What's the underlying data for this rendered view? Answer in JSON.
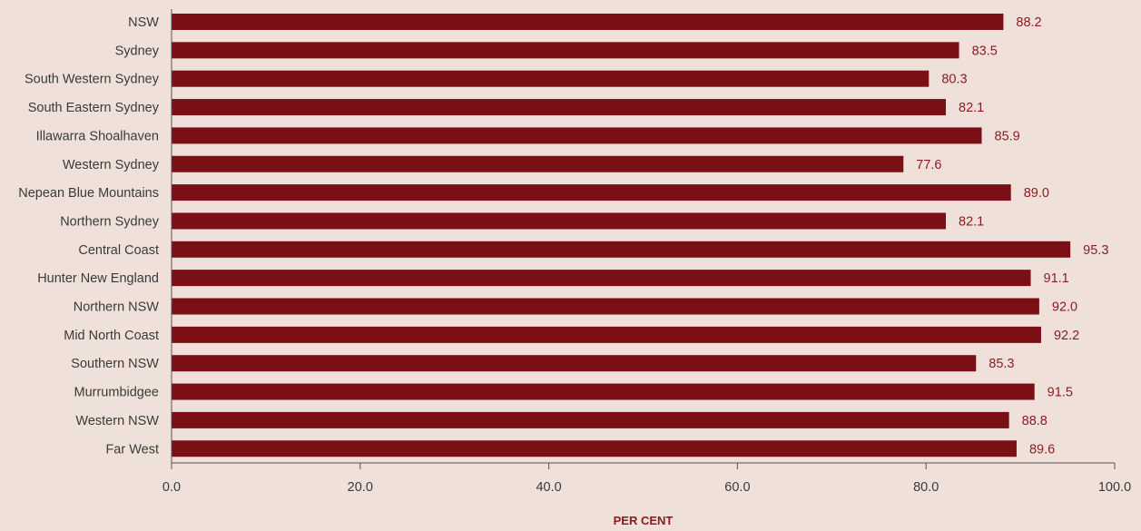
{
  "chart_data": {
    "type": "bar",
    "orientation": "horizontal",
    "categories": [
      "NSW",
      "Sydney",
      "South Western Sydney",
      "South Eastern Sydney",
      "Illawarra Shoalhaven",
      "Western Sydney",
      "Nepean Blue Mountains",
      "Northern Sydney",
      "Central Coast",
      "Hunter New England",
      "Northern NSW",
      "Mid North Coast",
      "Southern NSW",
      "Murrumbidgee",
      "Western NSW",
      "Far West"
    ],
    "values": [
      88.2,
      83.5,
      80.3,
      82.1,
      85.9,
      77.6,
      89.0,
      82.1,
      95.3,
      91.1,
      92.0,
      92.2,
      85.3,
      91.5,
      88.8,
      89.6
    ],
    "value_labels": [
      "88.2",
      "83.5",
      "80.3",
      "82.1",
      "85.9",
      "77.6",
      "89.0",
      "82.1",
      "95.3",
      "91.1",
      "92.0",
      "92.2",
      "85.3",
      "91.5",
      "88.8",
      "89.6"
    ],
    "xlim": [
      0,
      100
    ],
    "xticks": [
      0,
      20,
      40,
      60,
      80,
      100
    ],
    "xtick_labels": [
      "0.0",
      "20.0",
      "40.0",
      "60.0",
      "80.0",
      "100.0"
    ],
    "xlabel": "PER CENT",
    "ylabel": "",
    "title": "",
    "grid": false,
    "legend": "none"
  },
  "colors": {
    "background": "#efe1da",
    "bar": "#7a1016",
    "value_text": "#8b1a1f",
    "axis": "#555555",
    "text": "#3a3a3a"
  }
}
